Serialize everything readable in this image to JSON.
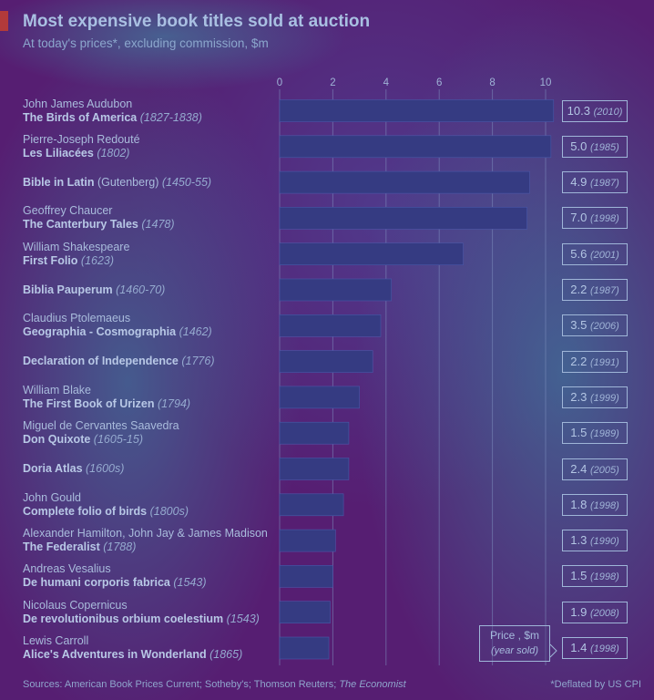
{
  "chart_data": {
    "type": "bar",
    "orientation": "horizontal",
    "title": "Most expensive book titles sold at auction",
    "subtitle": "At today's prices*, excluding commission, $m",
    "xlim": [
      0,
      10.3
    ],
    "ticks": [
      0,
      2,
      4,
      6,
      8,
      10
    ],
    "tick_labels": [
      "0",
      "2",
      "4",
      "6",
      "8",
      "10"
    ],
    "grid": true,
    "items": [
      {
        "author": "John James Audubon",
        "title": "The Birds of America",
        "date": "(1827-1838)",
        "value": 10.3,
        "price": "10.3",
        "year": "(2010)"
      },
      {
        "author": "Pierre-Joseph Redouté",
        "title": "Les Liliacées",
        "date": "(1802)",
        "value": 10.2,
        "price": "5.0",
        "year": "(1985)"
      },
      {
        "author": "",
        "title": "Bible in Latin",
        "title_extra": "(Gutenberg)",
        "date": "(1450-55)",
        "value": 9.4,
        "price": "4.9",
        "year": "(1987)"
      },
      {
        "author": "Geoffrey Chaucer",
        "title": "The Canterbury Tales",
        "date": "(1478)",
        "value": 9.3,
        "price": "7.0",
        "year": "(1998)"
      },
      {
        "author": "William Shakespeare",
        "title": "First Folio",
        "date": "(1623)",
        "value": 6.9,
        "price": "5.6",
        "year": "(2001)"
      },
      {
        "author": "",
        "title": "Biblia Pauperum",
        "date": "(1460-70)",
        "value": 4.2,
        "price": "2.2",
        "year": "(1987)"
      },
      {
        "author": "Claudius Ptolemaeus",
        "title": "Geographia - Cosmographia",
        "date": "(1462)",
        "value": 3.8,
        "price": "3.5",
        "year": "(2006)"
      },
      {
        "author": "",
        "title": "Declaration of Independence",
        "date": "(1776)",
        "value": 3.5,
        "price": "2.2",
        "year": "(1991)"
      },
      {
        "author": "William Blake",
        "title": "The First Book of Urizen",
        "date": "(1794)",
        "value": 3.0,
        "price": "2.3",
        "year": "(1999)"
      },
      {
        "author": "Miguel de Cervantes Saavedra",
        "title": "Don Quixote",
        "date": "(1605-15)",
        "value": 2.6,
        "price": "1.5",
        "year": "(1989)"
      },
      {
        "author": "",
        "title": "Doria Atlas",
        "date": "(1600s)",
        "value": 2.6,
        "price": "2.4",
        "year": "(2005)"
      },
      {
        "author": "John Gould",
        "title": "Complete folio of birds",
        "date": "(1800s)",
        "value": 2.4,
        "price": "1.8",
        "year": "(1998)"
      },
      {
        "author": "Alexander Hamilton, John Jay & James Madison",
        "title": "The Federalist",
        "date": "(1788)",
        "value": 2.1,
        "price": "1.3",
        "year": "(1990)"
      },
      {
        "author": "Andreas Vesalius",
        "title": "De humani corporis fabrica",
        "date": "(1543)",
        "value": 2.0,
        "price": "1.5",
        "year": "(1998)"
      },
      {
        "author": "Nicolaus Copernicus",
        "title": "De revolutionibus orbium coelestium",
        "date": "(1543)",
        "value": 1.9,
        "price": "1.9",
        "year": "(2008)"
      },
      {
        "author": "Lewis Carroll",
        "title": "Alice's Adventures in Wonderland",
        "date": "(1865)",
        "value": 1.85,
        "price": "1.4",
        "year": "(1998)"
      }
    ],
    "legend": {
      "line1": "Price , $m",
      "line2": "(year sold)"
    },
    "source_prefix": "Sources: American Book Prices Current; Sotheby's; Thomson Reuters; ",
    "source_em": "The Economist",
    "note": "*Deflated by US CPI"
  },
  "colors": {
    "bar": "#353B82",
    "bar_edge": "#4a58a8",
    "grid": "#7e8fbf",
    "accent": "#b23a3a"
  }
}
